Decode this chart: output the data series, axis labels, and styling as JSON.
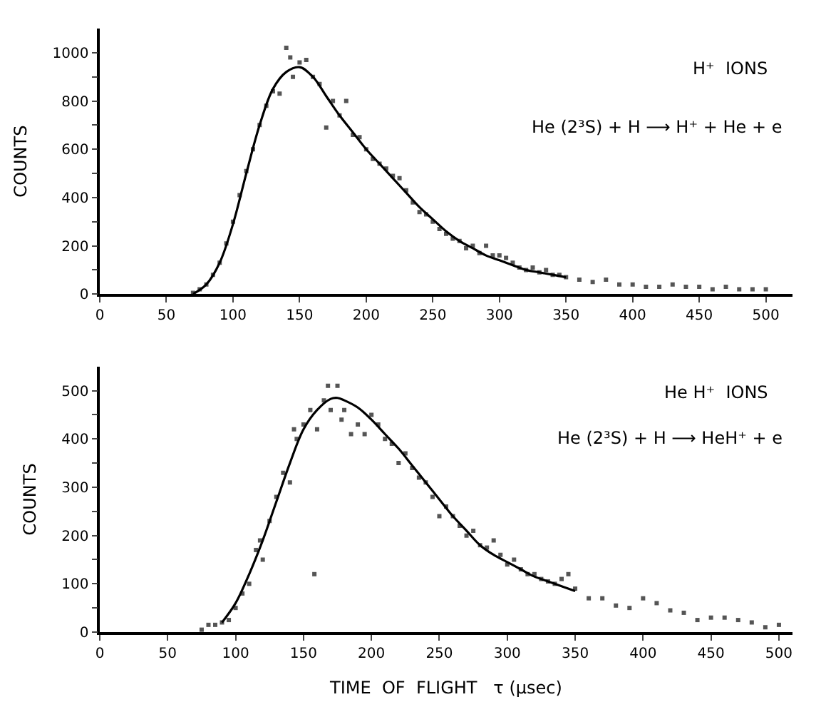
{
  "chart_data": [
    {
      "type": "scatter",
      "ylabel": "COUNTS",
      "annotations": [
        "H⁺  IONS",
        "He (2³S) + H ⟶ H⁺ + He + e"
      ],
      "xlim": [
        0,
        520
      ],
      "ylim": [
        0,
        1100
      ],
      "xticks": [
        0,
        50,
        100,
        150,
        200,
        250,
        300,
        350,
        400,
        450,
        500
      ],
      "yticks": [
        0,
        {
          "value": 100,
          "label": null
        },
        200,
        {
          "value": 300,
          "label": null
        },
        400,
        {
          "value": 500,
          "label": null
        },
        600,
        {
          "value": 700,
          "label": null
        },
        800,
        {
          "value": 900,
          "label": null
        },
        1000
      ],
      "series": [
        {
          "marker": "square",
          "color": "#555555",
          "x": [
            70,
            75,
            80,
            85,
            90,
            95,
            100,
            105,
            110,
            115,
            120,
            125,
            130,
            135,
            140,
            143,
            145,
            150,
            155,
            160,
            165,
            170,
            175,
            180,
            185,
            190,
            195,
            200,
            205,
            210,
            215,
            220,
            225,
            230,
            235,
            240,
            245,
            250,
            255,
            260,
            265,
            270,
            275,
            280,
            285,
            290,
            295,
            300,
            305,
            310,
            315,
            320,
            325,
            330,
            335,
            340,
            345,
            350,
            360,
            370,
            380,
            390,
            400,
            410,
            420,
            430,
            440,
            450,
            460,
            470,
            480,
            490,
            500
          ],
          "values": [
            5,
            20,
            40,
            80,
            130,
            210,
            300,
            410,
            510,
            600,
            700,
            780,
            840,
            830,
            1020,
            980,
            900,
            960,
            970,
            900,
            870,
            690,
            800,
            740,
            800,
            660,
            650,
            600,
            560,
            540,
            520,
            490,
            480,
            430,
            380,
            340,
            330,
            300,
            270,
            250,
            230,
            220,
            190,
            200,
            170,
            200,
            160,
            160,
            150,
            130,
            110,
            100,
            110,
            90,
            100,
            80,
            80,
            70,
            60,
            50,
            60,
            40,
            40,
            30,
            30,
            40,
            30,
            30,
            20,
            30,
            20,
            20,
            20
          ]
        },
        {
          "type": "line",
          "color": "#000000",
          "x": [
            70,
            80,
            90,
            100,
            110,
            120,
            130,
            140,
            150,
            160,
            170,
            180,
            190,
            200,
            210,
            220,
            230,
            240,
            250,
            260,
            270,
            280,
            290,
            300,
            310,
            320,
            330,
            340,
            350
          ],
          "values": [
            0,
            40,
            130,
            290,
            500,
            700,
            850,
            920,
            940,
            900,
            820,
            740,
            670,
            600,
            540,
            480,
            420,
            360,
            310,
            260,
            220,
            190,
            160,
            140,
            120,
            100,
            90,
            80,
            70
          ]
        }
      ]
    },
    {
      "type": "scatter",
      "xlabel": "TIME  OF  FLIGHT   τ (µsec)",
      "ylabel": "COUNTS",
      "annotations": [
        "He H⁺  IONS",
        "He (2³S) + H ⟶ HeH⁺ + e"
      ],
      "xlim": [
        0,
        510
      ],
      "ylim": [
        0,
        550
      ],
      "xticks": [
        0,
        50,
        100,
        150,
        200,
        250,
        300,
        350,
        400,
        450,
        500
      ],
      "yticks": [
        0,
        {
          "value": 50,
          "label": null
        },
        100,
        {
          "value": 150,
          "label": null
        },
        200,
        {
          "value": 250,
          "label": null
        },
        300,
        {
          "value": 350,
          "label": null
        },
        400,
        {
          "value": 450,
          "label": null
        },
        500
      ],
      "series": [
        {
          "marker": "square",
          "color": "#555555",
          "x": [
            75,
            80,
            85,
            90,
            95,
            100,
            105,
            110,
            115,
            118,
            120,
            125,
            130,
            135,
            140,
            143,
            145,
            150,
            155,
            158,
            160,
            165,
            168,
            170,
            175,
            178,
            180,
            185,
            190,
            195,
            200,
            205,
            210,
            215,
            220,
            225,
            230,
            235,
            240,
            245,
            250,
            255,
            260,
            265,
            270,
            275,
            280,
            285,
            290,
            295,
            300,
            305,
            310,
            315,
            320,
            325,
            330,
            335,
            340,
            345,
            350,
            360,
            370,
            380,
            390,
            400,
            410,
            420,
            430,
            440,
            450,
            460,
            470,
            480,
            490,
            500
          ],
          "values": [
            5,
            15,
            15,
            20,
            25,
            50,
            80,
            100,
            170,
            190,
            150,
            230,
            280,
            330,
            310,
            420,
            400,
            430,
            460,
            120,
            420,
            480,
            510,
            460,
            510,
            440,
            460,
            410,
            430,
            410,
            450,
            430,
            400,
            390,
            350,
            370,
            340,
            320,
            310,
            280,
            240,
            260,
            240,
            220,
            200,
            210,
            180,
            175,
            190,
            160,
            140,
            150,
            130,
            120,
            120,
            110,
            105,
            100,
            110,
            120,
            90,
            70,
            70,
            55,
            50,
            70,
            60,
            45,
            40,
            25,
            30,
            30,
            25,
            20,
            10,
            15
          ]
        },
        {
          "type": "line",
          "color": "#000000",
          "x": [
            90,
            100,
            110,
            120,
            130,
            140,
            150,
            160,
            170,
            175,
            180,
            190,
            200,
            210,
            220,
            230,
            240,
            250,
            260,
            270,
            280,
            290,
            300,
            310,
            320,
            330,
            340,
            350
          ],
          "values": [
            20,
            60,
            120,
            190,
            270,
            350,
            420,
            460,
            483,
            485,
            480,
            465,
            440,
            410,
            380,
            345,
            310,
            275,
            240,
            210,
            180,
            160,
            145,
            130,
            115,
            105,
            95,
            85
          ]
        }
      ]
    }
  ]
}
